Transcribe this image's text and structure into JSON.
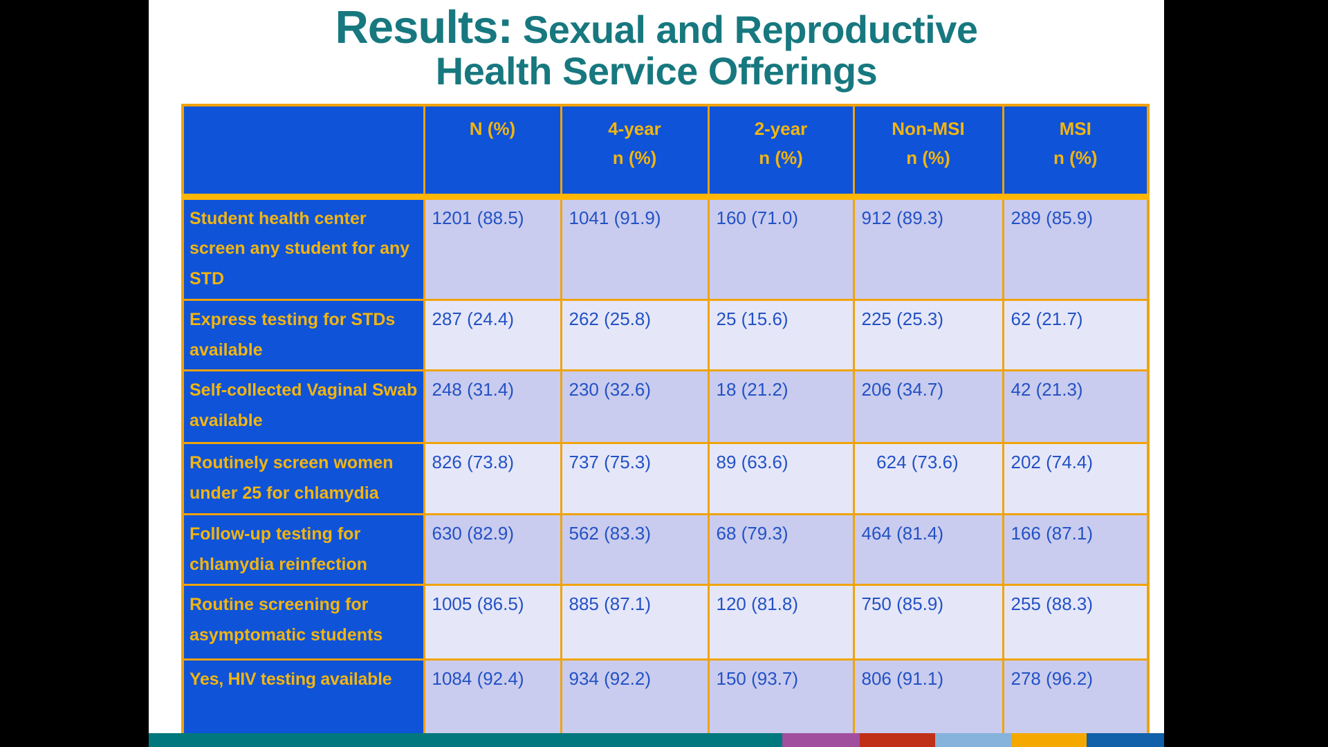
{
  "slide": {
    "title": {
      "line1_emphasis": "Results:",
      "line1_rest": " Sexual and Reproductive",
      "line2": "Health Service Offerings"
    },
    "colors": {
      "title_teal": "#17787F",
      "cell_blue": "#0F53D8",
      "gold_border": "#F0A30A",
      "gold_text": "#F2B511",
      "value_text_blue": "#2351C5",
      "row_shade_dark": "#C9CCEE",
      "row_shade_light": "#E5E7F8"
    },
    "table": {
      "header": [
        {
          "line1": "",
          "line2": ""
        },
        {
          "line1": "N (%)",
          "line2": ""
        },
        {
          "line1": "4-year",
          "line2": "n (%)"
        },
        {
          "line1": "2-year",
          "line2": "n (%)"
        },
        {
          "line1": "Non-MSI",
          "line2": "n (%)"
        },
        {
          "line1": "MSI",
          "line2": "n (%)"
        }
      ],
      "rows": [
        {
          "label": "Student health center screen any student for any STD",
          "values": [
            "1201 (88.5)",
            "1041 (91.9)",
            "160 (71.0)",
            "912 (89.3)",
            "289 (85.9)"
          ]
        },
        {
          "label": "Express testing for STDs available",
          "values": [
            "287 (24.4)",
            "262 (25.8)",
            "25 (15.6)",
            "225 (25.3)",
            "62 (21.7)"
          ]
        },
        {
          "label": "Self-collected Vaginal Swab available",
          "values": [
            "248 (31.4)",
            "230 (32.6)",
            "18 (21.2)",
            "206 (34.7)",
            "42 (21.3)"
          ]
        },
        {
          "label": "Routinely screen women under 25 for chlamydia",
          "values": [
            "826 (73.8)",
            "737 (75.3)",
            "89 (63.6)",
            "   624 (73.6)",
            "202 (74.4)"
          ]
        },
        {
          "label": "Follow-up testing for chlamydia reinfection",
          "values": [
            "630 (82.9)",
            "562 (83.3)",
            "68 (79.3)",
            "464 (81.4)",
            "166 (87.1)"
          ]
        },
        {
          "label": "Routine screening for asymptomatic students",
          "values": [
            "1005 (86.5)",
            "885 (87.1)",
            "120 (81.8)",
            "750 (85.9)",
            "255 (88.3)"
          ]
        },
        {
          "label": "Yes, HIV testing available",
          "values": [
            "1084 (92.4)",
            "934 (92.2)",
            "150 (93.7)",
            "806 (91.1)",
            "278 (96.2)"
          ]
        }
      ]
    },
    "footer_stripe": [
      {
        "name": "teal",
        "color": "#00787D",
        "flex": 915
      },
      {
        "name": "purple",
        "color": "#A14E9F",
        "flex": 112
      },
      {
        "name": "red",
        "color": "#C03018",
        "flex": 109
      },
      {
        "name": "light-blue",
        "color": "#85B3DC",
        "flex": 111
      },
      {
        "name": "orange",
        "color": "#F5A800",
        "flex": 108
      },
      {
        "name": "dark-blue",
        "color": "#1061A9",
        "flex": 112
      }
    ]
  }
}
